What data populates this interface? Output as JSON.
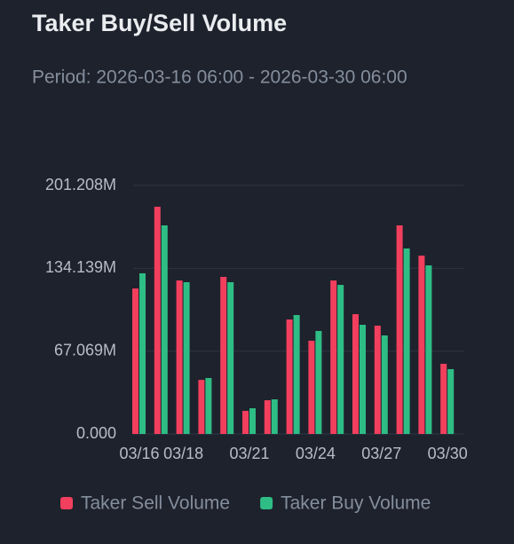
{
  "chart_data": {
    "type": "bar",
    "title": "Taker Buy/Sell Volume",
    "subtitle": "Period: 2026-03-16 06:00 - 2026-03-30 06:00",
    "categories": [
      "03/16",
      null,
      "03/18",
      null,
      null,
      "03/21",
      null,
      null,
      "03/24",
      null,
      null,
      "03/27",
      null,
      null,
      "03/30"
    ],
    "series": [
      {
        "name": "Taker Sell Volume",
        "color": "#f23f5d",
        "values": [
          117.8,
          184.0,
          124.3,
          43.8,
          127.2,
          18.7,
          27.3,
          92.7,
          75.5,
          124.3,
          97.0,
          87.7,
          168.9,
          144.4,
          56.8
        ]
      },
      {
        "name": "Taker Buy Volume",
        "color": "#2ebd85",
        "values": [
          130.1,
          168.9,
          122.9,
          45.3,
          122.9,
          20.8,
          28.0,
          96.3,
          83.4,
          120.7,
          88.4,
          79.8,
          150.2,
          136.5,
          52.5
        ]
      }
    ],
    "ylim": [
      0,
      201.208
    ],
    "yticks": [
      {
        "value": 0,
        "label": "0.000"
      },
      {
        "value": 67.069,
        "label": "67.069M"
      },
      {
        "value": 134.139,
        "label": "134.139M"
      },
      {
        "value": 201.208,
        "label": "201.208M"
      }
    ],
    "grid": true,
    "legend": "bottom"
  }
}
